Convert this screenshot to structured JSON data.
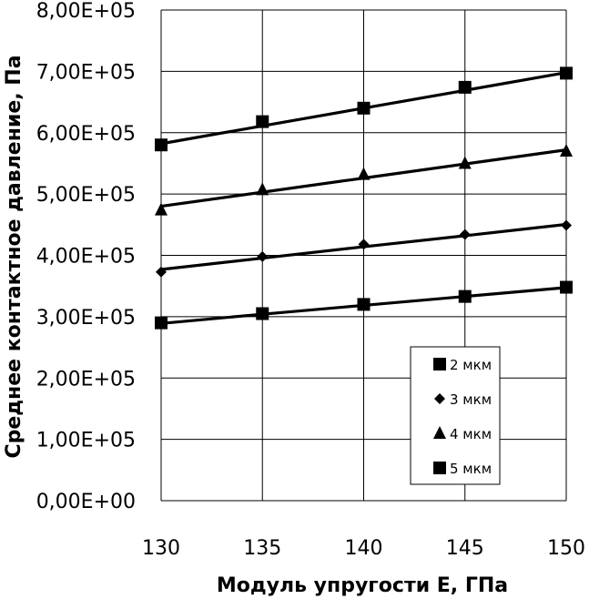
{
  "chart_data": {
    "type": "line",
    "xlabel": "Модуль упругости E, ГПа",
    "ylabel": "Среднее контактное давление, Па",
    "x": [
      130,
      135,
      140,
      145,
      150
    ],
    "xlim": [
      130,
      150
    ],
    "ylim": [
      0,
      800000
    ],
    "x_ticks": [
      130,
      135,
      140,
      145,
      150
    ],
    "x_tick_labels": [
      "130",
      "135",
      "140",
      "145",
      "150"
    ],
    "y_ticks": [
      0,
      100000,
      200000,
      300000,
      400000,
      500000,
      600000,
      700000,
      800000
    ],
    "y_tick_labels": [
      "0,00E+00",
      "1,00E+05",
      "2,00E+05",
      "3,00E+05",
      "4,00E+05",
      "5,00E+05",
      "6,00E+05",
      "7,00E+05",
      "8,00E+05"
    ],
    "grid": true,
    "legend_position": "bottom-right",
    "series": [
      {
        "name": "2 мкм",
        "marker": "square",
        "values": [
          290000,
          305000,
          320000,
          333000,
          348000
        ],
        "trend": [
          289000,
          304000,
          318500,
          333000,
          347500
        ]
      },
      {
        "name": "3 мкм",
        "marker": "diamond",
        "values": [
          373000,
          398000,
          418000,
          434000,
          449000
        ],
        "trend": [
          377000,
          395500,
          414000,
          432000,
          450500
        ]
      },
      {
        "name": "4 мкм",
        "marker": "triangle",
        "values": [
          474000,
          507000,
          532000,
          550000,
          570000
        ],
        "trend": [
          480000,
          503000,
          526000,
          549000,
          572000
        ]
      },
      {
        "name": "5 мкм",
        "marker": "square",
        "values": [
          580000,
          618000,
          640000,
          674000,
          697000
        ],
        "trend": [
          582000,
          611000,
          640000,
          669000,
          698000
        ]
      }
    ]
  }
}
